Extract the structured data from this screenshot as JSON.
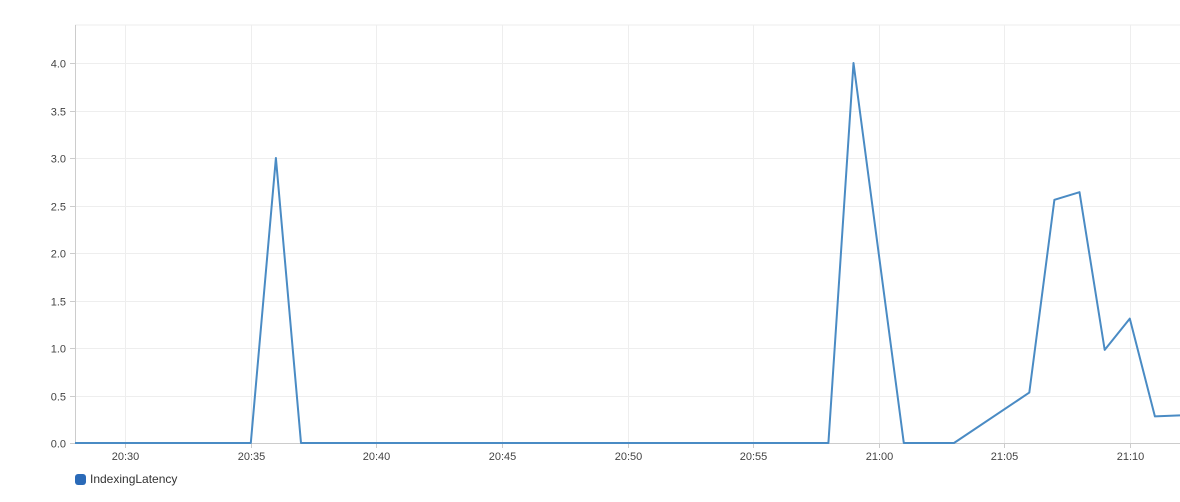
{
  "chart_data": {
    "type": "line",
    "x": [
      "20:28",
      "20:35",
      "20:36",
      "20:37",
      "20:58",
      "20:59",
      "21:01",
      "21:03",
      "21:06",
      "21:07",
      "21:08",
      "21:09",
      "21:10",
      "21:11",
      "21:12"
    ],
    "series": [
      {
        "name": "IndexingLatency",
        "color": "#4a8bc4",
        "values": [
          0,
          0,
          3.0,
          0,
          0,
          4.0,
          0,
          0,
          0.53,
          2.56,
          2.64,
          0.98,
          1.31,
          0.28,
          0.29
        ]
      }
    ],
    "xticks": [
      "20:30",
      "20:35",
      "20:40",
      "20:45",
      "20:50",
      "20:55",
      "21:00",
      "21:05",
      "21:10"
    ],
    "yticks": [
      "0.0",
      "0.5",
      "1.0",
      "1.5",
      "2.0",
      "2.5",
      "3.0",
      "3.5",
      "4.0"
    ],
    "xlim": [
      "20:28",
      "21:12"
    ],
    "ylim": [
      0,
      4.4
    ],
    "grid": true,
    "legend_position": "bottom-left",
    "title": "",
    "xlabel": "",
    "ylabel": ""
  }
}
